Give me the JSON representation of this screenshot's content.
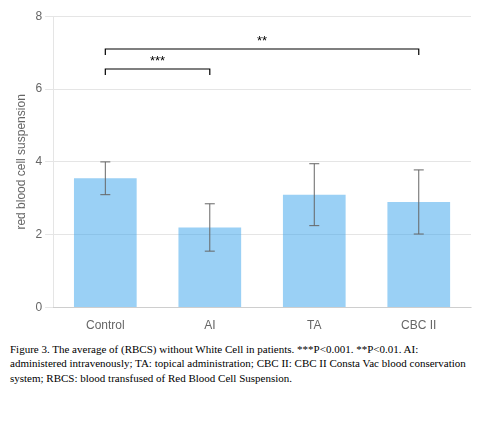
{
  "chart_data": {
    "type": "bar",
    "categories": [
      "Control",
      "AI",
      "TA",
      "CBC II"
    ],
    "values": [
      3.55,
      2.2,
      3.1,
      2.9
    ],
    "errors": [
      0.45,
      0.65,
      0.85,
      0.88
    ],
    "ylabel": "red blood cell suspension",
    "ylim": [
      0,
      8
    ],
    "yticks": [
      0,
      2,
      4,
      6,
      8
    ],
    "grid": true,
    "annotations": [
      {
        "type": "bracket",
        "x1": "Control",
        "x2": "AI",
        "y": 6.55,
        "label": "***"
      },
      {
        "type": "bracket",
        "x1": "Control",
        "x2": "CBC II",
        "y": 7.1,
        "label": "**"
      }
    ],
    "caption": "Figure 3. The average of (RBCS) without White Cell in patients. ***P<0.001. **P<0.01. AI: administered intravenously; TA: topical administration; CBC II: CBC II Consta Vac blood conservation system; RBCS: blood transfused of Red Blood Cell Suspension."
  }
}
